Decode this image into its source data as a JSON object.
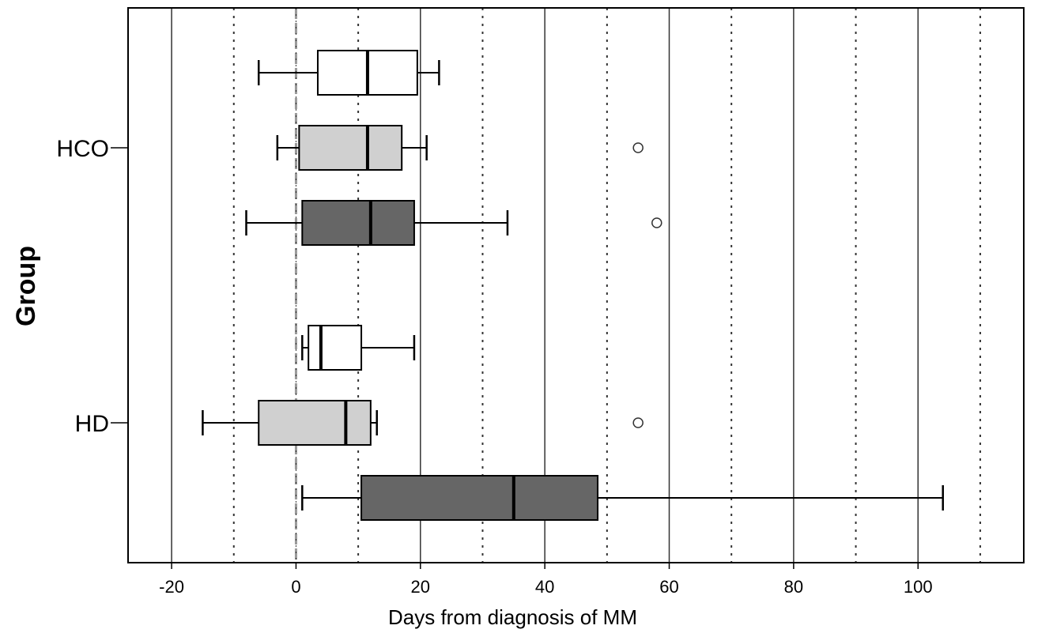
{
  "chart_data": {
    "type": "boxplot",
    "orientation": "horizontal",
    "xlabel": "Days from diagnosis of MM",
    "ylabel": "Group",
    "xlim": [
      -27,
      117
    ],
    "xticks": [
      -20,
      0,
      20,
      40,
      60,
      80,
      100
    ],
    "minor_gridlines": [
      -10,
      10,
      30,
      50,
      70,
      90,
      110
    ],
    "reference_line": 0,
    "grid": true,
    "legend": "none",
    "series_colors": [
      "#ffffff",
      "#d0d0d0",
      "#666666"
    ],
    "groups": [
      {
        "label": "HCO",
        "boxes": [
          {
            "min": -6,
            "q1": 3.5,
            "median": 11.5,
            "q3": 19.5,
            "max": 23,
            "outliers": []
          },
          {
            "min": -3,
            "q1": 0.5,
            "median": 11.5,
            "q3": 17,
            "max": 21,
            "outliers": [
              55
            ]
          },
          {
            "min": -8,
            "q1": 1,
            "median": 12,
            "q3": 19,
            "max": 34,
            "outliers": [
              58
            ]
          }
        ]
      },
      {
        "label": "HD",
        "boxes": [
          {
            "min": 1,
            "q1": 2,
            "median": 4,
            "q3": 10.5,
            "max": 19,
            "outliers": []
          },
          {
            "min": -15,
            "q1": -6,
            "median": 8,
            "q3": 12,
            "max": 13,
            "outliers": [
              55
            ]
          },
          {
            "min": 1,
            "q1": 10.5,
            "median": 35,
            "q3": 48.5,
            "max": 104,
            "outliers": []
          }
        ]
      }
    ]
  }
}
